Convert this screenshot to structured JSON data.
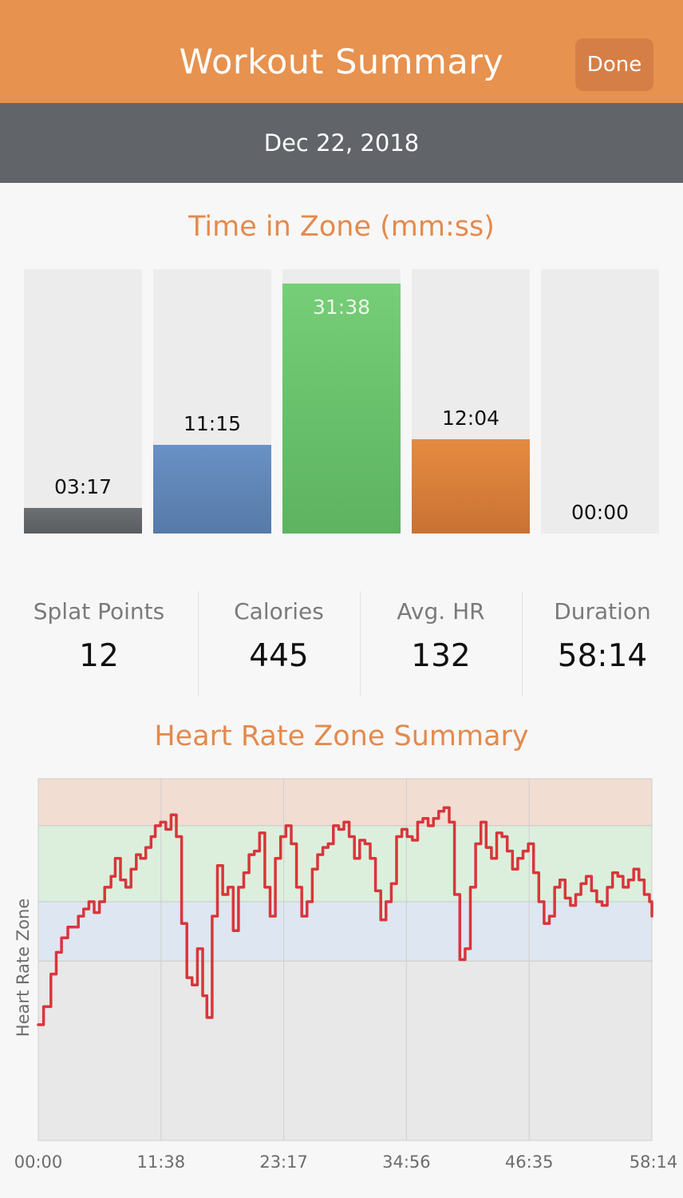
{
  "header": {
    "title": "Workout Summary",
    "done_label": "Done"
  },
  "date": "Dec 22, 2018",
  "time_in_zone": {
    "title": "Time in Zone (mm:ss)",
    "zones": [
      {
        "label": "03:17",
        "fraction": 0.097,
        "color_top": "#6d7073",
        "color_bottom": "#5a5d60"
      },
      {
        "label": "11:15",
        "fraction": 0.336,
        "color_top": "#6a91c6",
        "color_bottom": "#567aa8"
      },
      {
        "label": "31:38",
        "fraction": 0.946,
        "color_top": "#76ce78",
        "color_bottom": "#5db360"
      },
      {
        "label": "12:04",
        "fraction": 0.356,
        "color_top": "#e58a40",
        "color_bottom": "#c97233"
      },
      {
        "label": "00:00",
        "fraction": 0.0,
        "color_top": "#ececec",
        "color_bottom": "#ececec"
      }
    ]
  },
  "stats": [
    {
      "label": "Splat Points",
      "value": "12"
    },
    {
      "label": "Calories",
      "value": "445"
    },
    {
      "label": "Avg. HR",
      "value": "132"
    },
    {
      "label": "Duration",
      "value": "58:14"
    }
  ],
  "chart_data": {
    "type": "line",
    "title": "Heart Rate Zone Summary",
    "xlabel": "",
    "ylabel": "Heart Rate Zone",
    "x_tick_labels": [
      "00:00",
      "11:38",
      "23:17",
      "34:56",
      "46:35",
      "58:14"
    ],
    "x_range_minutes": [
      0,
      58.23
    ],
    "y_range": [
      0,
      100
    ],
    "zone_bands": [
      {
        "from": 0,
        "to": 49.6,
        "color": "#e8e8e8"
      },
      {
        "from": 49.6,
        "to": 66,
        "color": "#dde6f1"
      },
      {
        "from": 66,
        "to": 87,
        "color": "#dcefdd"
      },
      {
        "from": 87,
        "to": 100,
        "color": "#f1ddd2"
      }
    ],
    "line_color": "#d8363a",
    "grid": true,
    "series": [
      {
        "x": [
          0,
          0.5,
          1.2,
          1.7,
          2.2,
          2.8,
          3.3,
          3.8,
          4.3,
          4.8,
          5.3,
          5.8,
          6.3,
          6.9,
          7.3,
          7.8,
          8.3,
          8.8,
          9.3,
          9.7,
          10.2,
          10.7,
          11.1,
          11.6,
          12.1,
          12.6,
          13.1,
          13.6,
          14.1,
          14.6,
          15.1,
          15.6,
          16.0,
          16.5,
          17.0,
          17.5,
          18.0,
          18.5,
          19.0,
          19.5,
          20.0,
          20.5,
          21.0,
          21.5,
          22.0,
          22.5,
          23.0,
          23.5,
          24.0,
          24.5,
          25.0,
          25.5,
          26.0,
          26.5,
          27.0,
          27.5,
          28.0,
          28.5,
          29.0,
          29.5,
          30.0,
          30.5,
          31.0,
          31.5,
          32.0,
          32.5,
          33.0,
          33.5,
          34.0,
          34.5,
          35.0,
          35.5,
          36.0,
          36.5,
          37.0,
          37.5,
          38.0,
          38.5,
          39.0,
          39.5,
          40.0,
          40.5,
          41.0,
          41.5,
          42.0,
          42.5,
          43.0,
          43.5,
          44.0,
          44.5,
          45.0,
          45.5,
          46.0,
          46.5,
          47.0,
          47.5,
          48.0,
          48.5,
          49.0,
          49.5,
          50.0,
          50.5,
          51.0,
          51.5,
          52.0,
          52.5,
          53.0,
          53.5,
          54.0,
          54.5,
          55.0,
          55.5,
          56.0,
          56.5,
          57.0,
          57.5,
          58.0,
          58.23
        ],
        "y": [
          32,
          37,
          46,
          52,
          56,
          59,
          59,
          62,
          64,
          66,
          63,
          66,
          70,
          73,
          78,
          72,
          70,
          75,
          79,
          78,
          81,
          84,
          87,
          88,
          86,
          90,
          84,
          60,
          45,
          43,
          53,
          40,
          34,
          62,
          76,
          68,
          70,
          58,
          70,
          74,
          79,
          80,
          85,
          70,
          62,
          78,
          84,
          87,
          82,
          70,
          62,
          66,
          75,
          79,
          81,
          82,
          87,
          86,
          88,
          84,
          78,
          83,
          82,
          78,
          69,
          61,
          66,
          71,
          84,
          86,
          84,
          83,
          88,
          89,
          87,
          89,
          91,
          92,
          88,
          68,
          50,
          53,
          70,
          82,
          88,
          81,
          78,
          85,
          84,
          80,
          75,
          78,
          80,
          82,
          74,
          66,
          60,
          62,
          70,
          72,
          67,
          65,
          68,
          71,
          73,
          69,
          66,
          65,
          70,
          74,
          73,
          70,
          72,
          75,
          72,
          68,
          66,
          62
        ]
      }
    ]
  }
}
